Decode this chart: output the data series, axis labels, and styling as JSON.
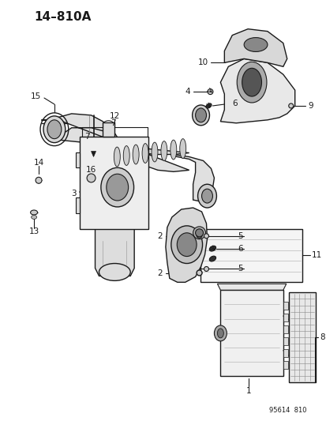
{
  "title": "14–810A",
  "watermark": "95614  810",
  "bg": "#ffffff",
  "lc": "#1a1a1a",
  "figsize": [
    4.14,
    5.33
  ],
  "dpi": 100,
  "label_fs": 7.0
}
